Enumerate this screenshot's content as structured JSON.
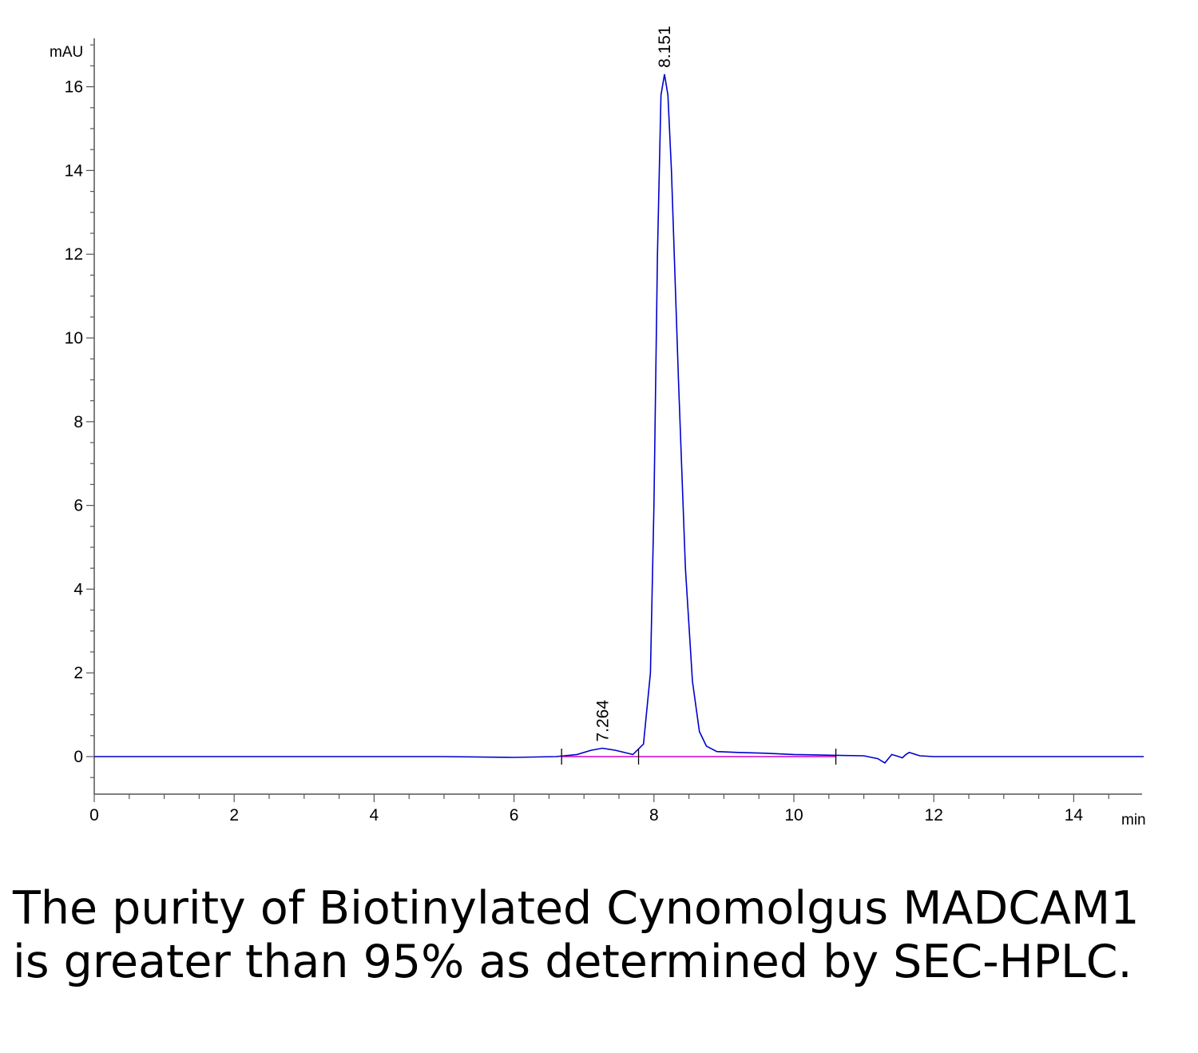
{
  "chart_data": {
    "type": "line",
    "title": "",
    "xlabel": "min",
    "ylabel": "mAU",
    "xlim": [
      0,
      15
    ],
    "ylim": [
      -0.9,
      17.2
    ],
    "x_ticks": [
      0,
      2,
      4,
      6,
      8,
      10,
      12,
      14
    ],
    "y_ticks": [
      0,
      2,
      4,
      6,
      8,
      10,
      12,
      14,
      16
    ],
    "grid": false,
    "series": [
      {
        "color": "#0000cc",
        "x": [
          0,
          5.0,
          6.0,
          6.6,
          6.9,
          7.1,
          7.264,
          7.45,
          7.7,
          7.85,
          7.95,
          8.0,
          8.05,
          8.1,
          8.151,
          8.2,
          8.25,
          8.35,
          8.45,
          8.55,
          8.65,
          8.75,
          8.9,
          9.2,
          9.6,
          10.0,
          10.6,
          11.0,
          11.2,
          11.3,
          11.4,
          11.5,
          11.55,
          11.6,
          11.65,
          11.8,
          12.0,
          15.0
        ],
        "y": [
          0.0,
          0.0,
          -0.02,
          0.0,
          0.05,
          0.15,
          0.2,
          0.15,
          0.05,
          0.3,
          2.0,
          6.0,
          12.0,
          15.8,
          16.3,
          15.8,
          14.0,
          9.0,
          4.5,
          1.8,
          0.6,
          0.25,
          0.12,
          0.1,
          0.08,
          0.05,
          0.03,
          0.02,
          -0.05,
          -0.15,
          0.05,
          0.0,
          -0.03,
          0.05,
          0.1,
          0.02,
          0.0,
          0.0
        ]
      },
      {
        "color": "#cc00cc",
        "x": [
          6.68,
          7.78,
          10.6
        ],
        "y": [
          0.0,
          0.0,
          0.0
        ]
      }
    ],
    "peak_labels": [
      {
        "x": 7.264,
        "y": 0.2,
        "label": "7.264"
      },
      {
        "x": 8.151,
        "y": 16.3,
        "label": "8.151"
      }
    ],
    "integration_marks": [
      6.68,
      7.78,
      10.6
    ]
  },
  "caption": "The purity of Biotinylated Cynomolgus MADCAM1 is greater than 95% as determined by SEC-HPLC."
}
